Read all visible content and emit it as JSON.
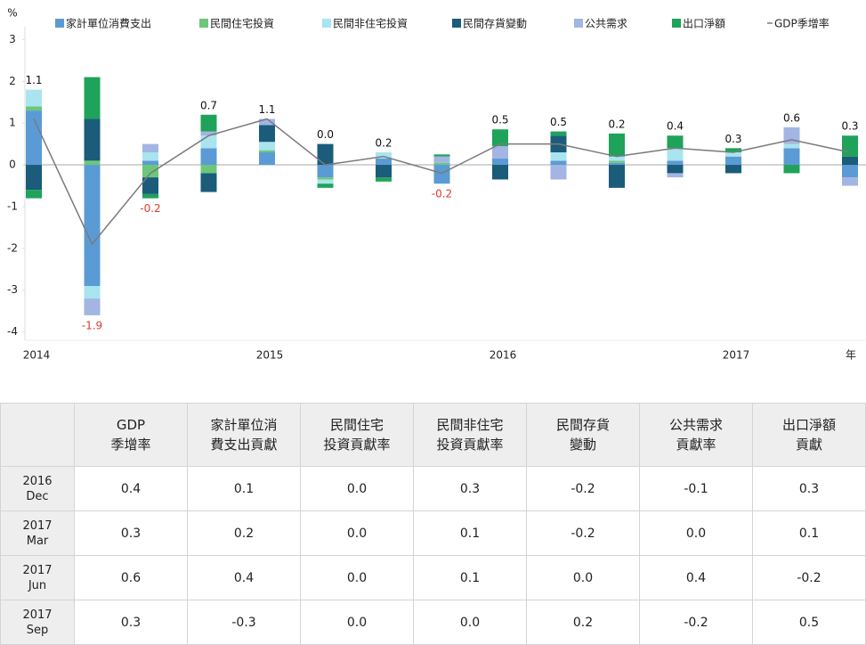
{
  "chart_data": {
    "type": "bar",
    "y_label": "%",
    "x_label": "年",
    "categories": [
      "2014",
      null,
      null,
      null,
      "2015",
      null,
      null,
      null,
      "2016",
      null,
      null,
      null,
      "2017",
      null,
      null
    ],
    "ylim": [
      -4.2,
      3.2
    ],
    "yticks": [
      3,
      2,
      1,
      0,
      -1,
      -2,
      -3,
      -4
    ],
    "series": [
      {
        "name": "家計單位消費支出",
        "color": "#5b9bd5",
        "values": [
          1.3,
          -2.9,
          0.1,
          0.4,
          0.3,
          -0.3,
          0.15,
          -0.45,
          0.15,
          0.1,
          0.05,
          0.1,
          0.2,
          0.4,
          -0.3
        ]
      },
      {
        "name": "民間住宅投資",
        "color": "#6cc77a",
        "values": [
          0.1,
          0.1,
          -0.3,
          -0.2,
          0.05,
          -0.05,
          0,
          0.05,
          0,
          0,
          0.05,
          0,
          0,
          0,
          0
        ]
      },
      {
        "name": "民間非住宅投資",
        "color": "#a9e4ef",
        "values": [
          0.4,
          -0.3,
          0.2,
          0.3,
          0.2,
          -0.1,
          0.15,
          0,
          0,
          0.2,
          0.1,
          0.3,
          0.1,
          0.1,
          0
        ]
      },
      {
        "name": "民間存貨變動",
        "color": "#1a5c7a",
        "values": [
          -0.6,
          1.0,
          -0.4,
          -0.45,
          0.4,
          0.5,
          -0.3,
          0,
          -0.35,
          0.4,
          -0.55,
          -0.2,
          -0.2,
          0,
          0.2
        ]
      },
      {
        "name": "公共需求",
        "color": "#a3b5e2",
        "values": [
          0,
          -0.4,
          0.2,
          0.1,
          0.15,
          0,
          0,
          0.15,
          0.3,
          -0.35,
          0,
          -0.1,
          0,
          0.4,
          -0.2
        ]
      },
      {
        "name": "出口淨額",
        "color": "#1fa35a",
        "values": [
          -0.2,
          1.0,
          -0.1,
          0.4,
          0,
          -0.1,
          -0.1,
          0.05,
          0.4,
          0.1,
          0.55,
          0.3,
          0.1,
          -0.2,
          0.5
        ]
      },
      {
        "name": "GDP季增率",
        "type": "line",
        "color": "#7a7a7a",
        "values": [
          1.1,
          -1.9,
          -0.2,
          0.7,
          1.1,
          0.0,
          0.2,
          -0.2,
          0.5,
          0.5,
          0.2,
          0.4,
          0.3,
          0.6,
          0.3
        ],
        "value_labels": [
          "1.1",
          "-1.9",
          "-0.2",
          "0.7",
          "1.1",
          "0.0",
          "0.2",
          "-0.2",
          "0.5",
          "0.5",
          "0.2",
          "0.4",
          "0.3",
          "0.6",
          "0.3"
        ]
      }
    ]
  },
  "table": {
    "header": [
      [
        "GDP",
        "季增率"
      ],
      [
        "家計單位消",
        "費支出貢獻"
      ],
      [
        "民間住宅",
        "投資貢獻率"
      ],
      [
        "民間非住宅",
        "投資貢獻率"
      ],
      [
        "民間存貨",
        "變動"
      ],
      [
        "公共需求",
        "貢獻率"
      ],
      [
        "出口淨額",
        "貢獻"
      ]
    ],
    "rows": [
      {
        "label": [
          "2016",
          "Dec"
        ],
        "cells": [
          "0.4",
          "0.1",
          "0.0",
          "0.3",
          "-0.2",
          "-0.1",
          "0.3"
        ]
      },
      {
        "label": [
          "2017",
          "Mar"
        ],
        "cells": [
          "0.3",
          "0.2",
          "0.0",
          "0.1",
          "-0.2",
          "0.0",
          "0.1"
        ]
      },
      {
        "label": [
          "2017",
          "Jun"
        ],
        "cells": [
          "0.6",
          "0.4",
          "0.0",
          "0.1",
          "0.0",
          "0.4",
          "-0.2"
        ]
      },
      {
        "label": [
          "2017",
          "Sep"
        ],
        "cells": [
          "0.3",
          "-0.3",
          "0.0",
          "0.0",
          "0.2",
          "-0.2",
          "0.5"
        ]
      }
    ]
  }
}
